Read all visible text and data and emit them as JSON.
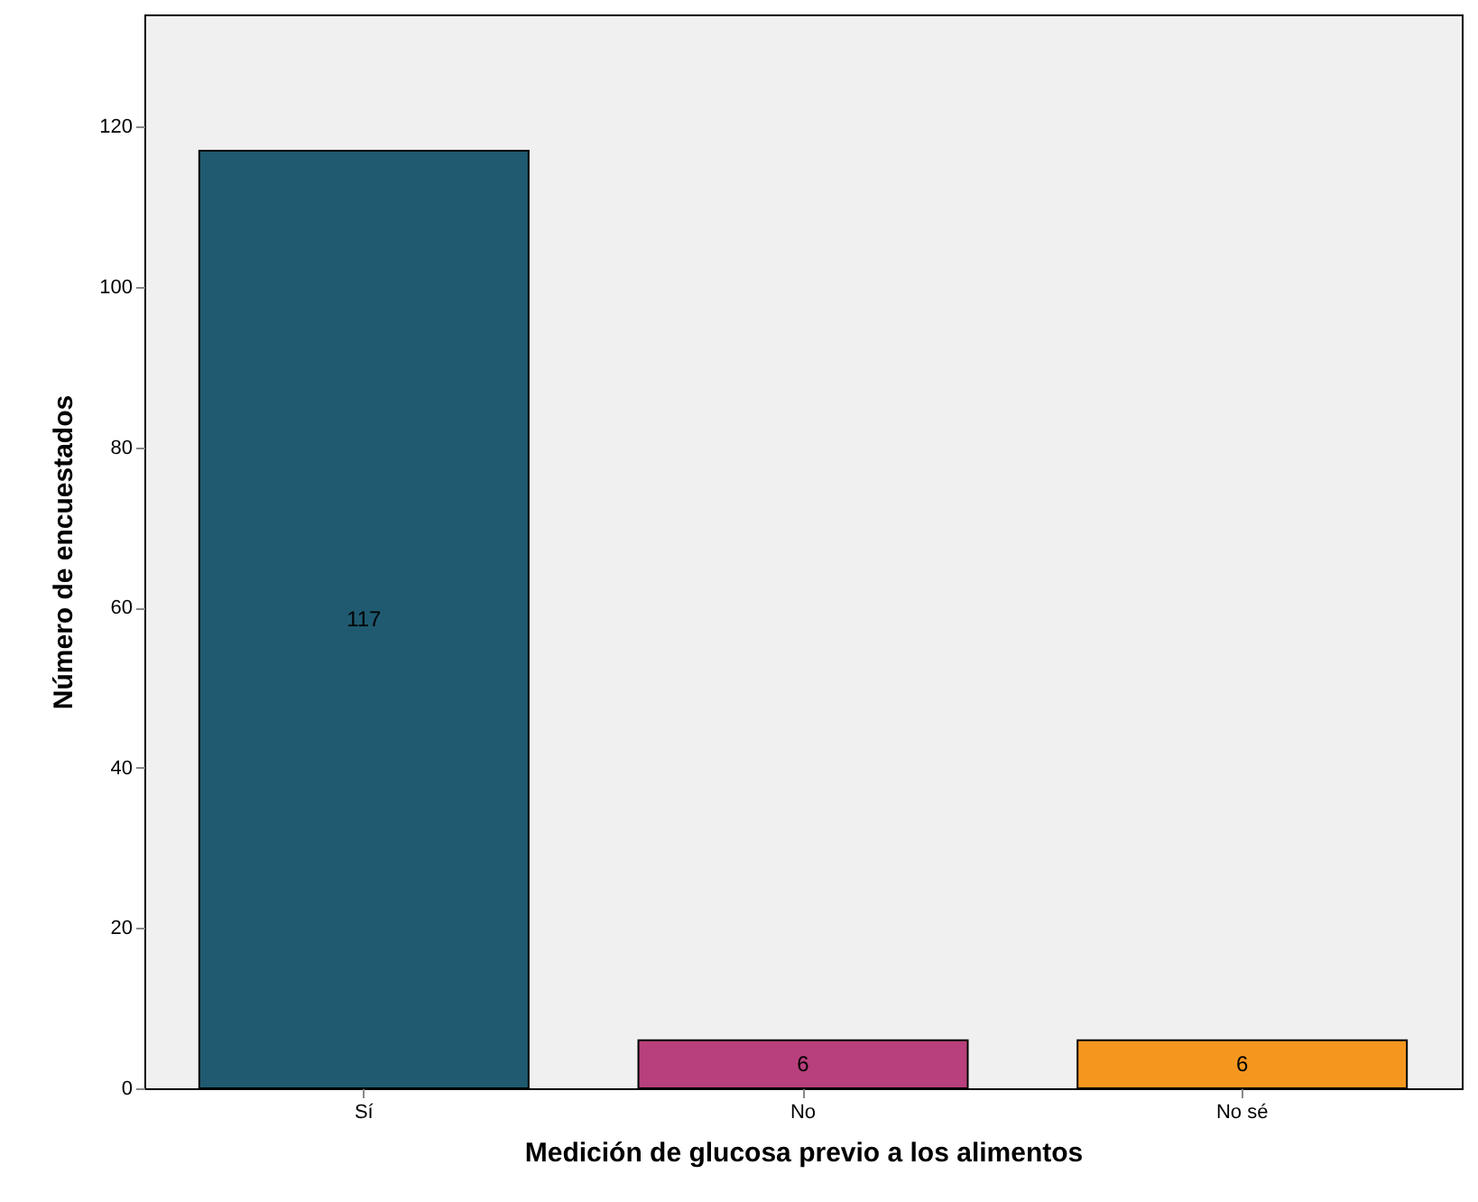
{
  "chart_data": {
    "type": "bar",
    "xlabel": "Medición de glucosa previo a los alimentos",
    "ylabel": "Número de encuestados",
    "categories": [
      "Sí",
      "No",
      "No sé"
    ],
    "values": [
      117,
      6,
      6
    ],
    "colors": [
      "#1f5a70",
      "#b8407c",
      "#f5971f"
    ],
    "ylim": [
      0,
      134
    ],
    "yticks": [
      0,
      20,
      40,
      60,
      80,
      100,
      120
    ],
    "grid": false,
    "data_labels": true
  }
}
